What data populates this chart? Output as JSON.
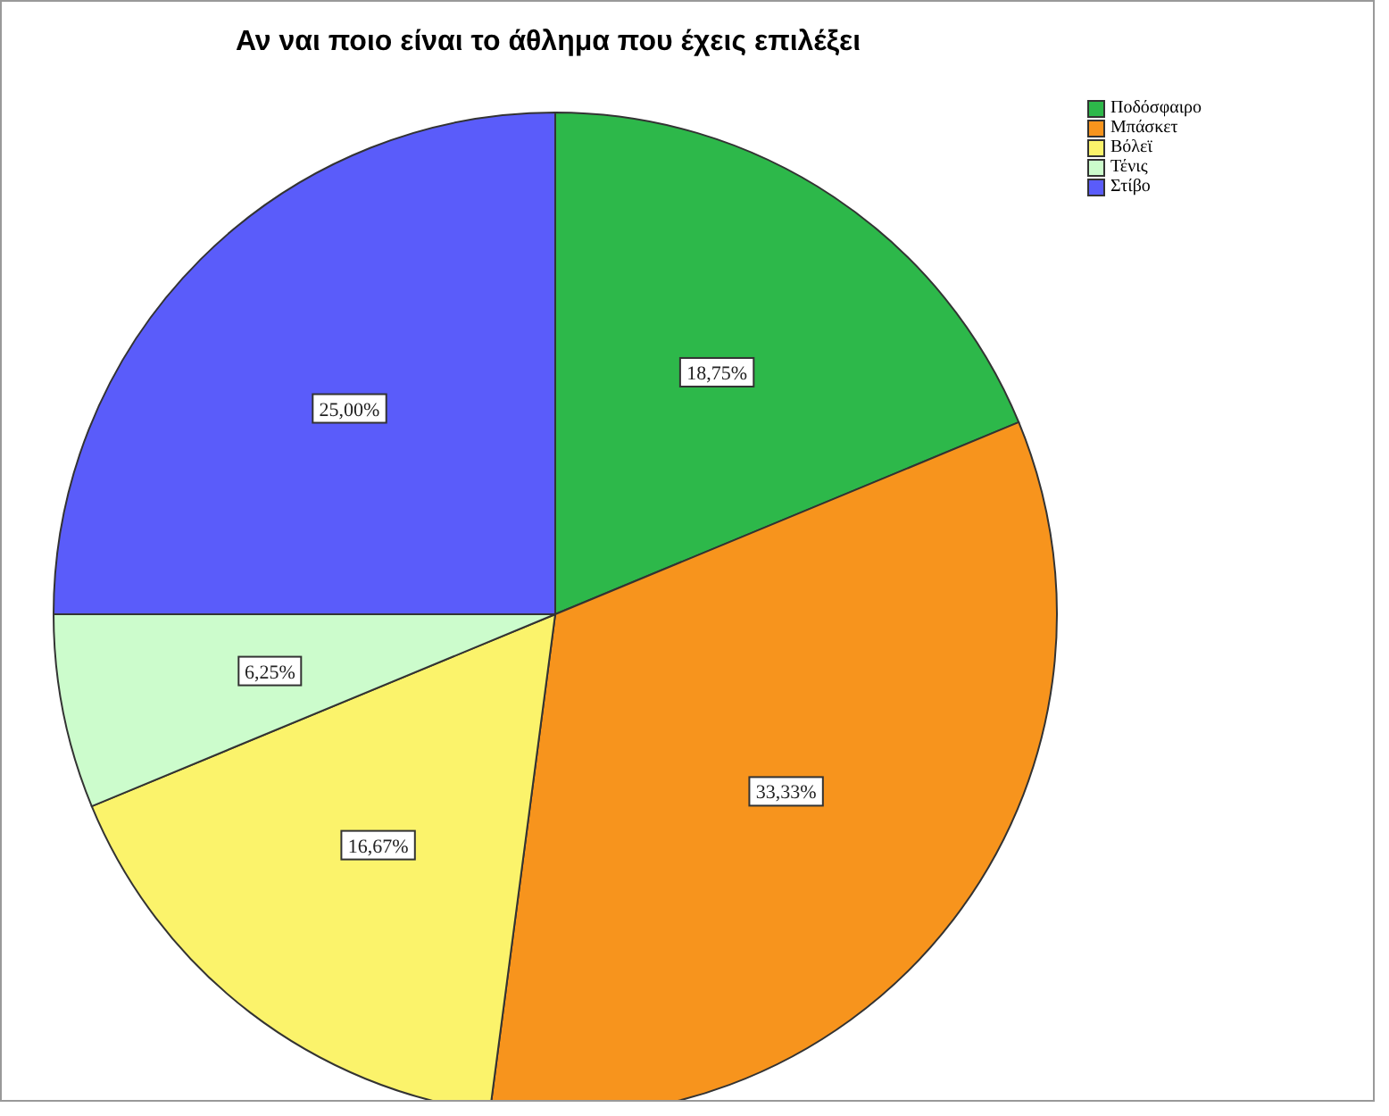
{
  "chart_data": {
    "type": "pie",
    "title": "Αν ναι ποιο είναι το άθλημα που έχεις επιλέξει",
    "categories": [
      "Ποδόσφαιρο",
      "Μπάσκετ",
      "Βόλεϊ",
      "Τένις",
      "Στίβο"
    ],
    "values": [
      18.75,
      33.33,
      16.67,
      6.25,
      25.0
    ],
    "value_labels": [
      "18,75%",
      "33,33%",
      "16,67%",
      "6,25%",
      "25,00%"
    ],
    "colors": [
      "#2db84a",
      "#f7941d",
      "#fbf36b",
      "#ccfccc",
      "#5a5cfa"
    ],
    "legend": "top right"
  }
}
